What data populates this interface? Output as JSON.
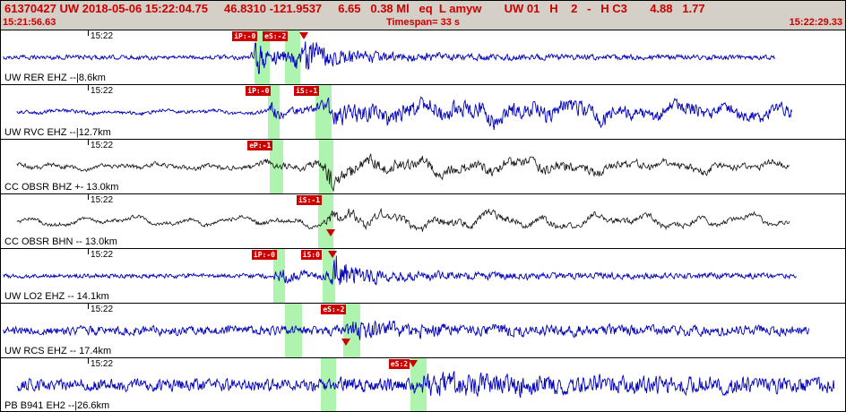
{
  "header": {
    "summary": "61370427 UW 2018-05-06 15:22:04.75     46.8310 -121.9537     6.65   0.38 Ml   eq  L amyw       UW 01   H    2   -   H C3       4.88   1.77",
    "start_time": "15:21:56.63",
    "timespan": "Timespan=  33 s",
    "end_time": "15:22:29.33"
  },
  "minute_tick_frac": 0.103,
  "colors": {
    "accent_red": "#cc0000",
    "trace_blue": "#0000bb",
    "trace_black": "#111111",
    "pick_band_green": "rgba(125,235,125,0.62)",
    "header_gray": "#d4d0c8"
  },
  "traces": [
    {
      "time_label": "15:22",
      "station_label": "UW RER EHZ --|8.6km",
      "color": "#0000bb",
      "x0": 0.003,
      "x1": 0.915,
      "lp": 0.12,
      "env": [
        [
          0,
          2.5
        ],
        [
          0.295,
          2.5
        ],
        [
          0.302,
          22
        ],
        [
          0.315,
          10
        ],
        [
          0.345,
          8
        ],
        [
          0.358,
          26
        ],
        [
          0.38,
          12
        ],
        [
          0.45,
          6
        ],
        [
          0.6,
          3.5
        ],
        [
          0.915,
          2.5
        ]
      ],
      "picks": [
        {
          "label": "iP:-0",
          "band": [
            0.3,
            0.319
          ]
        },
        {
          "label": "eS:-2",
          "band": [
            0.336,
            0.355
          ],
          "arrow": {
            "x": 0.358,
            "pos": "top"
          }
        }
      ]
    },
    {
      "time_label": "15:22",
      "station_label": "UW RVC EHZ --|12.7km",
      "color": "#0000bb",
      "x0": 0.019,
      "x1": 0.935,
      "lp": 0.5,
      "env": [
        [
          0,
          3.5
        ],
        [
          0.313,
          3.5
        ],
        [
          0.32,
          15
        ],
        [
          0.34,
          8
        ],
        [
          0.378,
          9
        ],
        [
          0.388,
          22
        ],
        [
          0.45,
          17
        ],
        [
          0.6,
          16
        ],
        [
          0.8,
          13
        ],
        [
          0.935,
          12
        ]
      ],
      "picks": [
        {
          "label": "iP:-0",
          "band": [
            0.316,
            0.33
          ]
        },
        {
          "label": "iS:-1",
          "band": [
            0.373,
            0.392
          ]
        }
      ]
    },
    {
      "time_label": "15:22",
      "station_label": "CC OBSR BHZ +- 13.0km",
      "color": "#111111",
      "x0": 0.019,
      "x1": 0.932,
      "lp": 0.55,
      "env": [
        [
          0,
          5
        ],
        [
          0.31,
          5
        ],
        [
          0.318,
          9
        ],
        [
          0.36,
          7
        ],
        [
          0.379,
          8
        ],
        [
          0.387,
          26
        ],
        [
          0.42,
          13
        ],
        [
          0.55,
          12
        ],
        [
          0.7,
          10
        ],
        [
          0.932,
          7
        ]
      ],
      "picks": [
        {
          "label": "eP:-1",
          "band": [
            0.318,
            0.334
          ]
        },
        {
          "band": [
            0.377,
            0.394
          ]
        }
      ]
    },
    {
      "time_label": "15:22",
      "station_label": "CC OBSR BHN -- 13.0km",
      "color": "#111111",
      "x0": 0.019,
      "x1": 0.932,
      "lp": 0.7,
      "env": [
        [
          0,
          6
        ],
        [
          0.3,
          6.5
        ],
        [
          0.38,
          7
        ],
        [
          0.392,
          24
        ],
        [
          0.43,
          13
        ],
        [
          0.55,
          12
        ],
        [
          0.7,
          10
        ],
        [
          0.932,
          8
        ]
      ],
      "picks": [
        {
          "label": "iS:-1",
          "band": [
            0.376,
            0.394
          ],
          "arrow": {
            "x": 0.39,
            "pos": "bottom"
          }
        }
      ]
    },
    {
      "time_label": "15:22",
      "station_label": "UW LO2 EHZ -- 14.1km",
      "color": "#0000bb",
      "x0": 0.003,
      "x1": 0.94,
      "lp": 0.12,
      "env": [
        [
          0,
          2.5
        ],
        [
          0.321,
          2.5
        ],
        [
          0.328,
          10
        ],
        [
          0.35,
          5
        ],
        [
          0.388,
          5
        ],
        [
          0.396,
          27
        ],
        [
          0.415,
          10
        ],
        [
          0.5,
          5
        ],
        [
          0.7,
          3.5
        ],
        [
          0.94,
          3
        ]
      ],
      "picks": [
        {
          "label": "iP:-0",
          "band": [
            0.323,
            0.337
          ]
        },
        {
          "label": "iS:0",
          "band": [
            0.381,
            0.396
          ],
          "arrow": {
            "x": 0.392,
            "pos": "top"
          }
        }
      ]
    },
    {
      "time_label": "15:22",
      "station_label": "UW RCS EHZ -- 17.4km",
      "color": "#0000bb",
      "x0": 0.003,
      "x1": 0.955,
      "lp": 0.08,
      "env": [
        [
          0,
          4.5
        ],
        [
          0.34,
          5
        ],
        [
          0.405,
          5.5
        ],
        [
          0.418,
          11
        ],
        [
          0.5,
          7.5
        ],
        [
          0.7,
          6
        ],
        [
          0.955,
          5
        ]
      ],
      "picks": [
        {
          "band": [
            0.337,
            0.357
          ]
        },
        {
          "label": "eS:-2",
          "band": [
            0.405,
            0.426
          ],
          "arrow": {
            "x": 0.408,
            "pos": "bottom"
          }
        }
      ]
    },
    {
      "time_label": "15:22",
      "station_label": "PB B941 EH2 --|26.6km",
      "color": "#0000bb",
      "x0": 0.019,
      "x1": 0.985,
      "lp": 0.15,
      "env": [
        [
          0,
          7
        ],
        [
          0.3,
          7.5
        ],
        [
          0.485,
          8
        ],
        [
          0.5,
          15
        ],
        [
          0.6,
          12
        ],
        [
          0.8,
          10.5
        ],
        [
          0.985,
          9
        ]
      ],
      "picks": [
        {
          "band": [
            0.379,
            0.397
          ]
        },
        {
          "label": "eS:2",
          "band": [
            0.485,
            0.504
          ],
          "arrow": {
            "x": 0.487,
            "pos": "top"
          }
        }
      ]
    }
  ]
}
